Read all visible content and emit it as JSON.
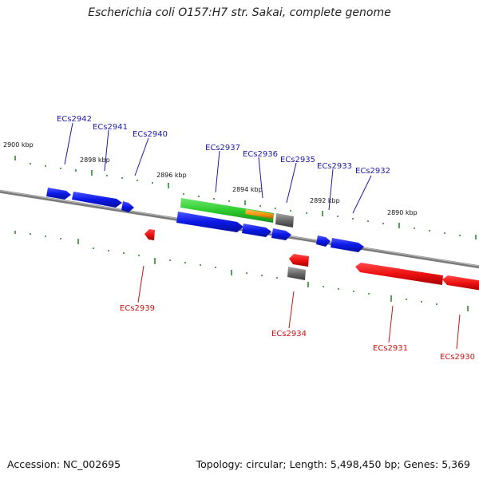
{
  "title": "Escherichia coli O157:H7 str. Sakai, complete genome",
  "footer": {
    "accession": "Accession: NC_002695",
    "summary": "Topology: circular; Length: 5,498,450 bp; Genes: 5,369"
  },
  "colors": {
    "forward_gene": "#0b18e6",
    "reverse_gene": "#ee1111",
    "forward_label": "#1a1aa8",
    "reverse_label": "#cc1111",
    "backbone": "#7a7a7a",
    "tick": "#2e8b2e",
    "cds_green": "#2ecc2e",
    "cds_orange": "#ff9911",
    "gray_feature": "#6a6a6a"
  },
  "scale": {
    "labels": [
      "2900 kbp",
      "2898 kbp",
      "2896 kbp",
      "2894 kbp",
      "2892 kbp",
      "2890 kbp"
    ]
  },
  "genes": {
    "forward": [
      "ECs2942",
      "ECs2941",
      "ECs2940",
      "ECs2937",
      "ECs2936",
      "ECs2935",
      "ECs2933",
      "ECs2932"
    ],
    "reverse": [
      "ECs2939",
      "ECs2934",
      "ECs2931",
      "ECs2930"
    ]
  }
}
